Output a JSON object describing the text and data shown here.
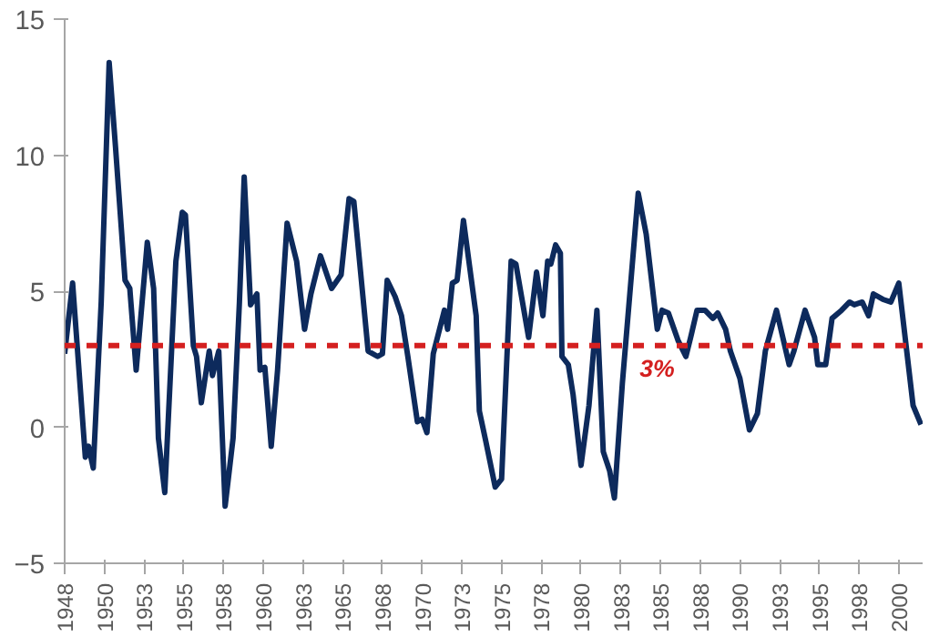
{
  "chart_data": {
    "type": "line",
    "x": [
      1948.0,
      1948.5,
      1949.3,
      1949.5,
      1949.8,
      1950.3,
      1950.8,
      1951.2,
      1951.8,
      1952.1,
      1952.5,
      1952.8,
      1953.2,
      1953.6,
      1953.9,
      1954.3,
      1955.0,
      1955.4,
      1955.6,
      1956.1,
      1956.3,
      1956.6,
      1957.1,
      1957.3,
      1957.7,
      1958.1,
      1958.6,
      1959.0,
      1959.3,
      1959.7,
      1960.1,
      1960.3,
      1960.6,
      1961.0,
      1961.4,
      1962.0,
      1962.6,
      1963.1,
      1963.5,
      1964.1,
      1964.8,
      1965.4,
      1965.9,
      1966.2,
      1967.1,
      1967.7,
      1968.0,
      1968.3,
      1968.8,
      1969.2,
      1969.6,
      1970.2,
      1970.5,
      1970.8,
      1971.2,
      1971.9,
      1972.1,
      1972.4,
      1972.7,
      1973.1,
      1973.9,
      1974.1,
      1974.5,
      1975.1,
      1975.5,
      1976.1,
      1976.4,
      1977.2,
      1977.7,
      1978.1,
      1978.4,
      1978.6,
      1978.9,
      1979.2,
      1979.3,
      1979.7,
      1980.0,
      1980.5,
      1981.0,
      1981.5,
      1981.9,
      1982.3,
      1982.6,
      1983.1,
      1984.1,
      1984.6,
      1985.3,
      1985.6,
      1986.0,
      1986.6,
      1987.1,
      1987.4,
      1987.8,
      1988.3,
      1988.8,
      1989.1,
      1989.6,
      1989.9,
      1990.5,
      1991.1,
      1991.6,
      1992.1,
      1992.8,
      1993.6,
      1993.9,
      1994.6,
      1995.2,
      1995.4,
      1995.9,
      1996.3,
      1996.9,
      1997.4,
      1997.7,
      1998.2,
      1998.6,
      1998.9,
      1999.5,
      2000.0,
      2000.5,
      2001.0,
      2001.4,
      2001.9
    ],
    "series": [
      {
        "color": "#0d2a5c",
        "values": [
          2.7,
          5.3,
          -1.1,
          -0.7,
          -1.5,
          4.6,
          13.4,
          10.3,
          5.4,
          5.1,
          2.1,
          4.1,
          6.8,
          5.1,
          -0.4,
          -2.4,
          6.1,
          7.9,
          7.8,
          3.0,
          2.6,
          0.9,
          2.8,
          1.9,
          2.8,
          -2.9,
          -0.4,
          4.6,
          9.2,
          4.5,
          4.9,
          2.1,
          2.2,
          -0.7,
          2.1,
          7.5,
          6.1,
          3.6,
          4.9,
          6.3,
          5.1,
          5.6,
          8.4,
          8.3,
          2.8,
          2.6,
          2.7,
          5.4,
          4.8,
          4.1,
          2.6,
          0.2,
          0.3,
          -0.2,
          2.7,
          4.3,
          3.6,
          5.3,
          5.4,
          7.6,
          4.1,
          0.6,
          -0.5,
          -2.2,
          -1.9,
          6.1,
          6.0,
          3.3,
          5.7,
          4.1,
          6.1,
          6.0,
          6.7,
          6.4,
          2.6,
          2.3,
          1.2,
          -1.4,
          0.8,
          4.3,
          -0.9,
          -1.6,
          -2.6,
          1.6,
          8.6,
          7.1,
          3.6,
          4.3,
          4.2,
          3.2,
          2.6,
          3.3,
          4.3,
          4.3,
          4.0,
          4.2,
          3.6,
          2.8,
          1.8,
          -0.1,
          0.5,
          2.8,
          4.3,
          2.3,
          2.8,
          4.3,
          3.3,
          2.3,
          2.3,
          4.0,
          4.3,
          4.6,
          4.5,
          4.6,
          4.1,
          4.9,
          4.7,
          4.6,
          5.3,
          2.8,
          0.8,
          0.1
        ]
      }
    ],
    "xlim": [
      1948,
      2002
    ],
    "xticks": [
      1948,
      {
        "value": 1950.5,
        "label": "1950"
      },
      1953,
      {
        "value": 1955.5,
        "label": "1955"
      },
      1958,
      {
        "value": 1960.5,
        "label": "1960"
      },
      1963,
      {
        "value": 1965.5,
        "label": "1965"
      },
      1968,
      {
        "value": 1970.5,
        "label": "1970"
      },
      1973,
      {
        "value": 1975.5,
        "label": "1975"
      },
      1978,
      {
        "value": 1980.5,
        "label": "1980"
      },
      1983,
      {
        "value": 1985.5,
        "label": "1985"
      },
      1988,
      {
        "value": 1990.5,
        "label": "1990"
      },
      1993,
      {
        "value": 1995.5,
        "label": "1995"
      },
      1998,
      {
        "value": 2000.5,
        "label": "2000"
      }
    ],
    "ylim": [
      -5,
      15
    ],
    "yticks": [
      -5,
      0,
      5,
      10,
      15
    ],
    "ref_lines": [
      {
        "axis": "y",
        "value": 3,
        "label": "3%",
        "color": "#d42020",
        "line_style": "dashed"
      }
    ],
    "grid": false,
    "marker": "none",
    "line_style": "solid"
  }
}
